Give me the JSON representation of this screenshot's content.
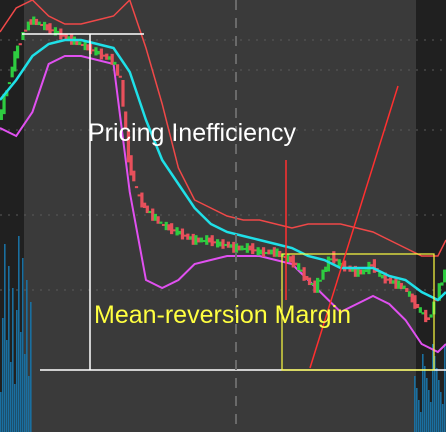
{
  "annotations": {
    "pricing_inefficiency": "Pricing Inefficiency",
    "mean_reversion_margin": "Mean-reversion Margin"
  },
  "colors": {
    "background_panel": "#3a3a3a",
    "background_dark": "#202020",
    "candle_up": "#2ecc40",
    "candle_down": "#e8505b",
    "moving_average": "#1fe0e8",
    "lower_band": "#e050f0",
    "upper_band": "#f04848",
    "volume": "#1a6fa0",
    "white_annotation": "#ffffff",
    "yellow_annotation": "#ffff40",
    "red_trendline": "#ff3030"
  },
  "chart_data": {
    "type": "line",
    "ylim": [
      0,
      100
    ],
    "xlim": [
      0,
      110
    ],
    "grid": true,
    "series": [
      {
        "role": "price",
        "x": [
          0,
          2,
          4,
          6,
          8,
          10,
          12,
          14,
          16,
          18,
          20,
          22,
          24,
          26,
          28,
          30,
          32,
          34,
          36,
          38,
          40,
          42,
          44,
          46,
          48,
          50,
          52,
          54,
          56,
          58,
          60,
          62,
          64,
          66,
          68,
          70,
          72,
          74,
          76,
          78,
          80,
          82,
          84,
          86,
          88,
          90,
          92,
          94,
          96,
          98,
          100,
          102,
          104,
          106,
          108,
          110
        ],
        "values": [
          70,
          78,
          86,
          92,
          95,
          94,
          93,
          92,
          91,
          90,
          89,
          88,
          87,
          86,
          85,
          80,
          60,
          52,
          48,
          46,
          44,
          43,
          42,
          41,
          40,
          40,
          40,
          39,
          39,
          38,
          38,
          38,
          37,
          37,
          37,
          36,
          35,
          33,
          30,
          28,
          32,
          36,
          34,
          33,
          32,
          32,
          34,
          31,
          30,
          29,
          28,
          25,
          22,
          20,
          26,
          32
        ]
      },
      {
        "role": "moving-average",
        "x": [
          0,
          4,
          8,
          12,
          16,
          20,
          24,
          28,
          32,
          36,
          40,
          44,
          48,
          52,
          56,
          60,
          64,
          68,
          72,
          76,
          80,
          84,
          88,
          92,
          96,
          100,
          104,
          108,
          110
        ],
        "values": [
          75,
          80,
          86,
          89,
          90,
          90,
          89,
          88,
          82,
          70,
          60,
          54,
          48,
          44,
          42,
          41,
          40,
          39,
          38,
          36,
          35,
          33,
          33,
          33,
          31,
          30,
          27,
          25,
          27
        ]
      },
      {
        "role": "lower-band",
        "x": [
          0,
          4,
          8,
          12,
          16,
          20,
          24,
          28,
          32,
          36,
          40,
          44,
          48,
          52,
          56,
          60,
          64,
          68,
          72,
          76,
          80,
          84,
          88,
          92,
          96,
          100,
          104,
          108,
          110
        ],
        "values": [
          68,
          66,
          72,
          84,
          86,
          86,
          85,
          84,
          52,
          30,
          28,
          30,
          34,
          35,
          36,
          36,
          36,
          35,
          34,
          30,
          26,
          22,
          24,
          26,
          24,
          20,
          14,
          12,
          14
        ]
      },
      {
        "role": "upper-band",
        "x": [
          0,
          4,
          8,
          12,
          16,
          20,
          24,
          28,
          32,
          36,
          40,
          44,
          48,
          52,
          56,
          60,
          64,
          68,
          72,
          76,
          80,
          84,
          88,
          92,
          96,
          100,
          104,
          108,
          110
        ],
        "values": [
          92,
          98,
          100,
          96,
          94,
          94,
          95,
          96,
          100,
          88,
          74,
          58,
          50,
          48,
          46,
          45,
          45,
          44,
          43,
          44,
          44,
          44,
          43,
          42,
          40,
          38,
          36,
          36,
          40
        ]
      }
    ]
  }
}
